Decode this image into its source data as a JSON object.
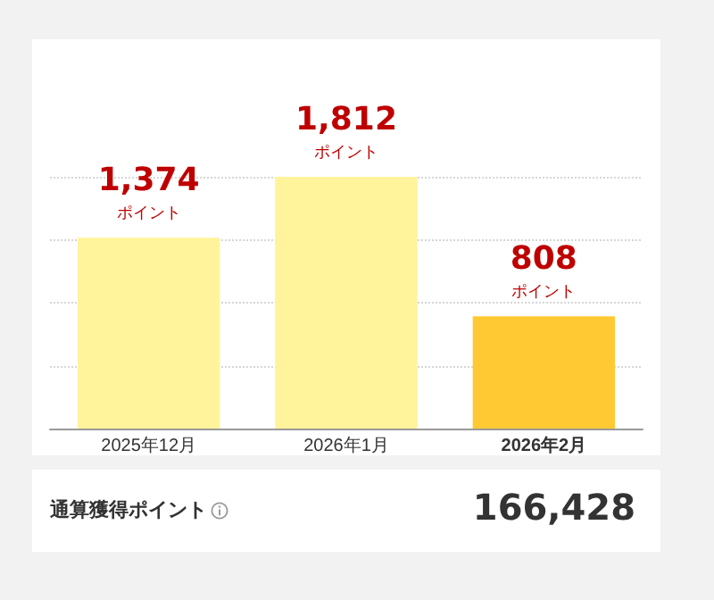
{
  "chart_data": {
    "type": "bar",
    "categories": [
      "2025年12月",
      "2026年1月",
      "2026年2月"
    ],
    "values": [
      1374,
      1812,
      808
    ],
    "colors": [
      "#fff39b",
      "#fff39b",
      "#ffc934"
    ],
    "value_labels": [
      "1,374\nポイント",
      "1,812\nポイント",
      "808\nポイント"
    ],
    "ylim": [
      0,
      1812
    ],
    "yticks": [
      {
        "value": 0,
        "label": null
      },
      {
        "value": 453,
        "label": null
      },
      {
        "value": 906,
        "label": null
      },
      {
        "value": 1359,
        "label": null
      },
      {
        "value": 1812,
        "label": null
      }
    ],
    "grid": "y",
    "tick_labels": "x",
    "annotations": [
      "通算獲得ポイント",
      "166,428"
    ]
  }
}
